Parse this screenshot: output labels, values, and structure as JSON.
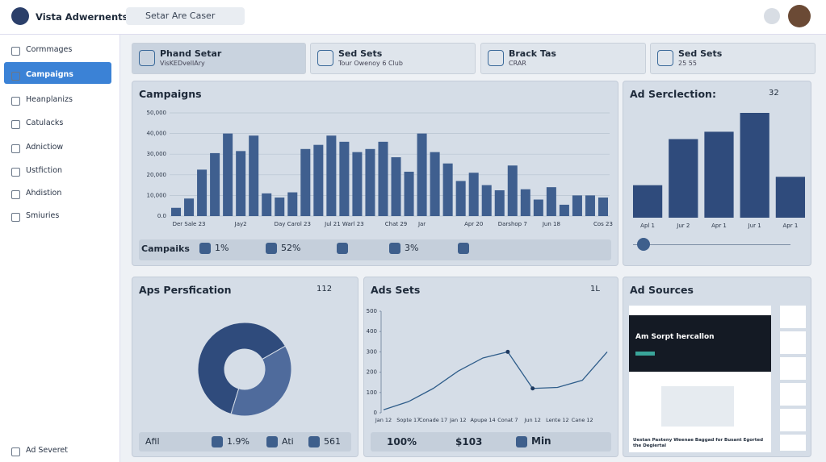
{
  "header": {
    "title": "Vista Adwernents",
    "search": "Setar Are Caser"
  },
  "sidebar": {
    "items": [
      "Cormmages",
      "Campaigns",
      "Heanplanizs",
      "Catulacks",
      "Adnictiow",
      "Ustfiction",
      "Ahdistion",
      "Smiuries"
    ],
    "footer": "Ad Severet"
  },
  "cards": [
    {
      "title": "Phand Setar",
      "subtitle": "VisKEDvellAry"
    },
    {
      "title": "Sed Sets",
      "subtitle": "Tour Owenoy 6 Club"
    },
    {
      "title": "Brack Tas",
      "subtitle": "CRAR"
    },
    {
      "title": "Sed Sets",
      "subtitle": "25 55"
    }
  ],
  "campaigns": {
    "title": "Campaigns",
    "chart": {
      "type": "bar",
      "color": "#3f5f8f",
      "grid": true,
      "categories": [
        null,
        "Der Sale 23",
        null,
        null,
        null,
        "Jay2",
        null,
        null,
        null,
        "Day Carol 23",
        null,
        null,
        null,
        "Jul 21 Warl 23",
        null,
        null,
        null,
        "Chat 29",
        null,
        "Jar",
        null,
        null,
        null,
        "Apr 20",
        null,
        null,
        "Darshop 7",
        null,
        null,
        "Jun 18",
        null,
        null,
        null,
        "Cos 23"
      ],
      "values": [
        4000,
        8500,
        22500,
        30500,
        40000,
        31500,
        39000,
        11000,
        9000,
        11500,
        32500,
        34500,
        39000,
        36000,
        31000,
        32500,
        36000,
        28500,
        21500,
        40000,
        31000,
        25500,
        17000,
        21000,
        15000,
        12500,
        24500,
        13000,
        8000,
        14000,
        5500,
        10000,
        10000,
        9000
      ],
      "ylim": [
        0,
        50000
      ],
      "yticks": [
        {
          "value": 0,
          "label": "0.0"
        },
        {
          "value": 10000,
          "label": "10,000"
        },
        {
          "value": 20000,
          "label": "20,000"
        },
        {
          "value": 30000,
          "label": "30,000"
        },
        {
          "value": 40000,
          "label": "40,000"
        },
        {
          "value": 50000,
          "label": "50,000"
        }
      ]
    },
    "footer": {
      "label": "Campaiks",
      "stats": [
        "1%",
        "52%",
        "3%"
      ]
    }
  },
  "selection": {
    "title": "Ad Serclection:",
    "badge": "32",
    "chart": {
      "type": "bar",
      "color": "#2f4b7c",
      "categories": [
        "Apl 1",
        "Jur 2",
        "Apr 1",
        "Jur 1",
        "Apr 1"
      ],
      "values": [
        31,
        75,
        82,
        100,
        39
      ]
    }
  },
  "persfication": {
    "title": "Aps Persfication",
    "badge": "112",
    "chart": {
      "type": "pie",
      "values": [
        62,
        38
      ],
      "colors": [
        "#2f4b7c",
        "#4f6b9c"
      ]
    },
    "footer": [
      "Afil",
      "1.9%",
      "Ati",
      "561"
    ]
  },
  "ads_sets": {
    "title": "Ads Sets",
    "badge": "1L",
    "chart": {
      "type": "line",
      "color": "#2f5d8a",
      "categories": [
        "Jan 12",
        "Sopte 17",
        "Conade 17",
        "Jan 12",
        "Apupe 14",
        "Conat 7",
        "Jun 12",
        "Lente 12",
        "Cane 12",
        null
      ],
      "values": [
        15,
        55,
        120,
        205,
        270,
        300,
        120,
        125,
        160,
        300
      ],
      "ylim": [
        0,
        500
      ],
      "yticks": [
        0,
        100,
        200,
        300,
        400,
        500
      ]
    },
    "footer": [
      "100%",
      "$103",
      "Min"
    ]
  },
  "sources": {
    "title": "Ad Sources",
    "headline": "Am Sorpt hercallon",
    "caption": "Uestan Pasteny Weenae Baggad for Busant Egorted the Degiertal"
  }
}
